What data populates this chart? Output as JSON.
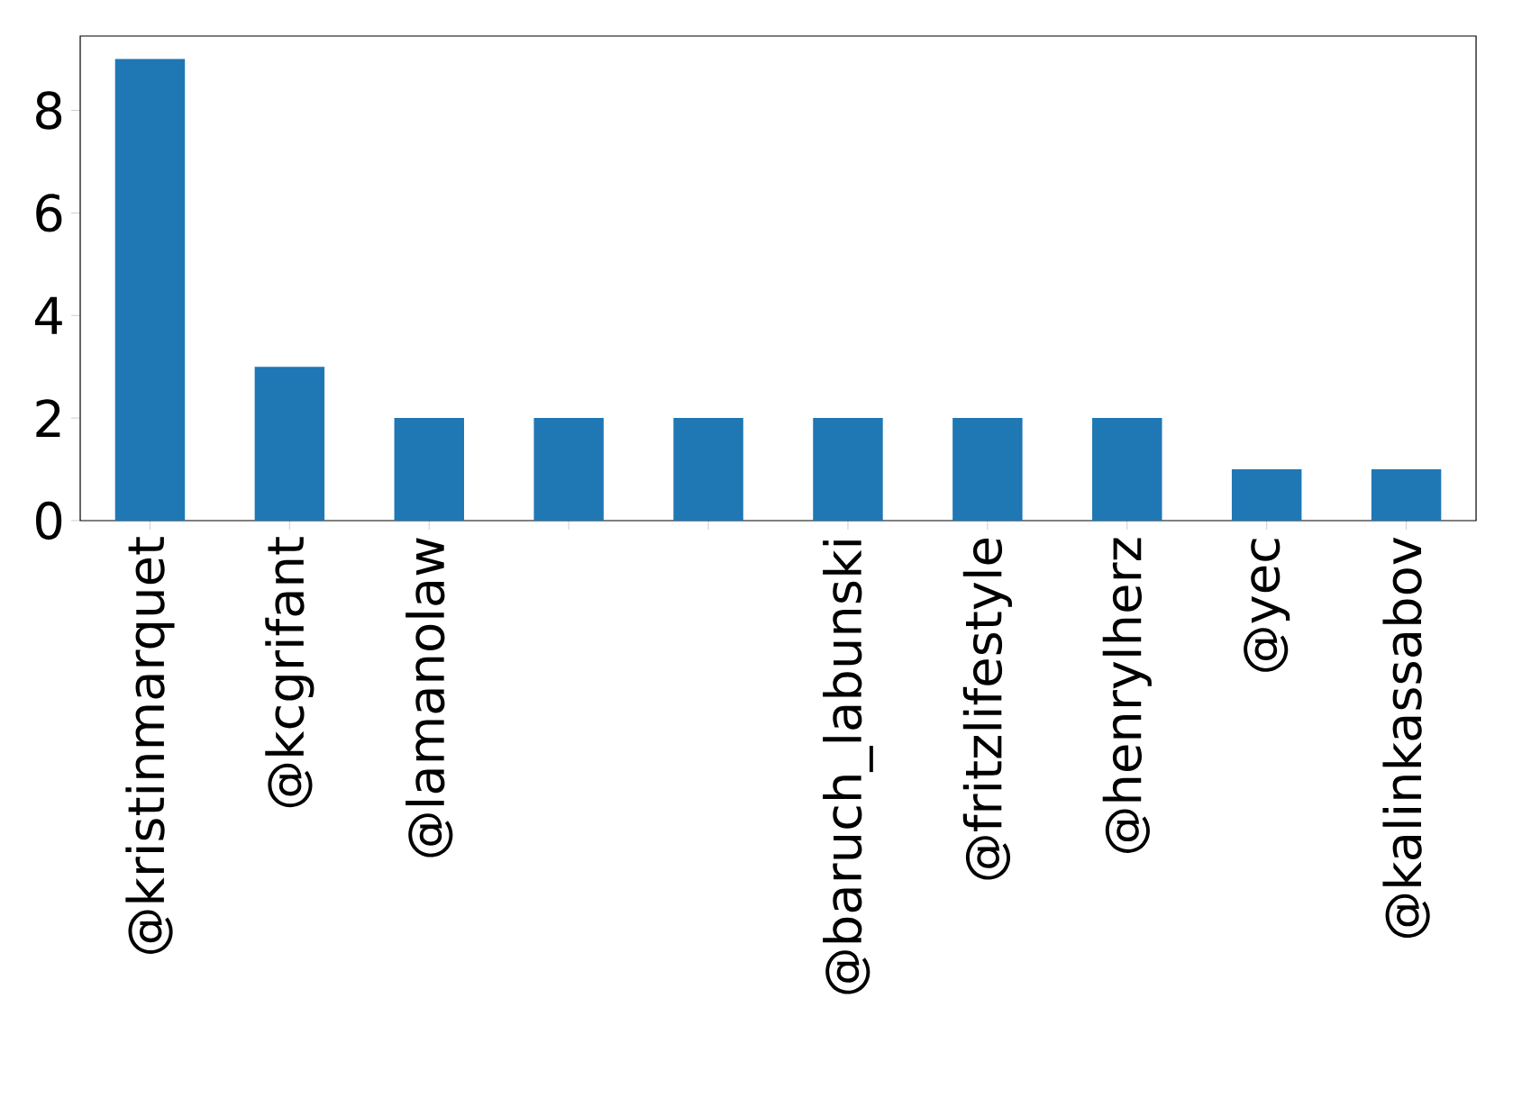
{
  "chart_data": {
    "type": "bar",
    "categories": [
      "@kristinmarquet",
      "@kcgrifant",
      "@lamanolaw",
      null,
      null,
      "@baruch_labunski",
      "@fritzlifestyle",
      "@henrylherz",
      "@yec",
      "@kalinkassabov"
    ],
    "values": [
      9,
      3,
      2,
      2,
      2,
      2,
      2,
      2,
      1,
      1
    ],
    "color": "#1f77b4",
    "ylim": [
      0,
      9.45
    ],
    "yticks": [
      0,
      2,
      4,
      6,
      8
    ],
    "grid": false
  }
}
